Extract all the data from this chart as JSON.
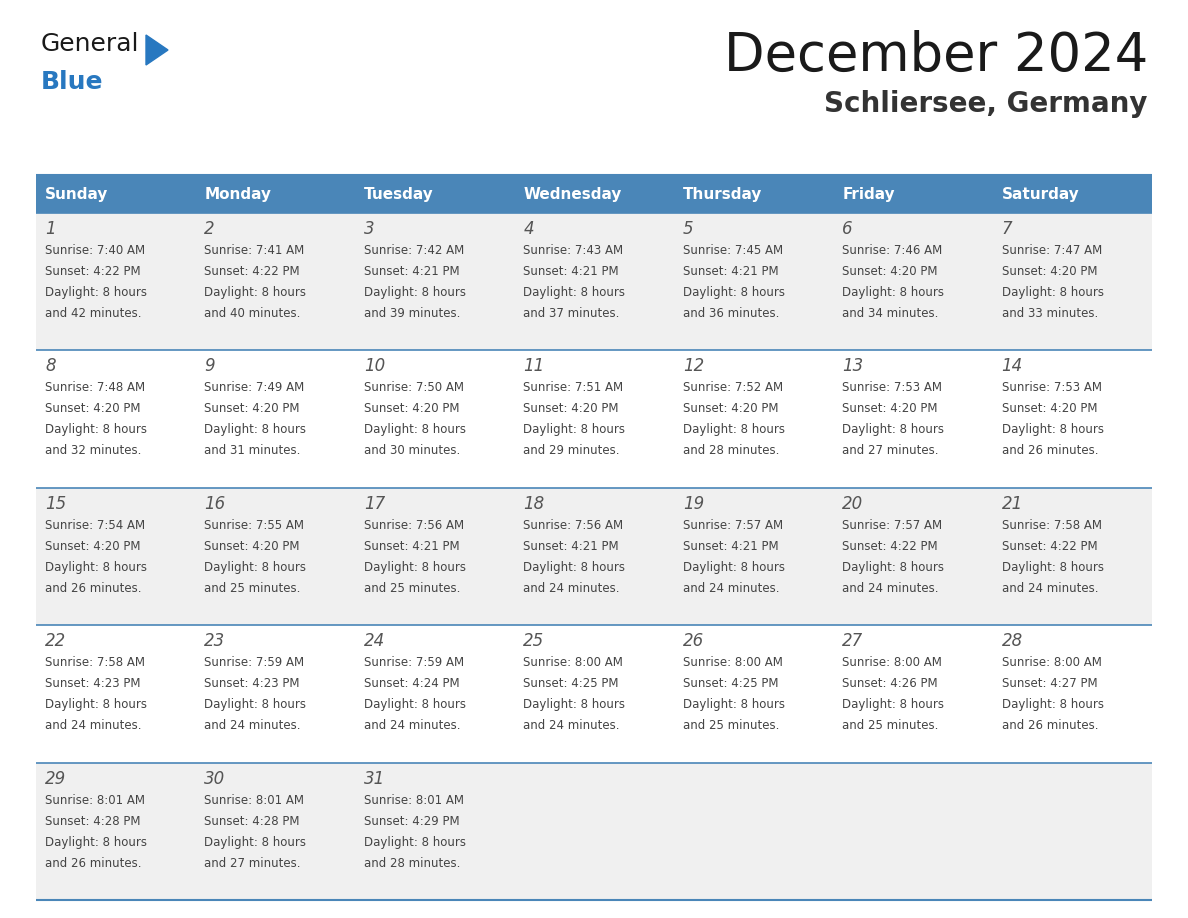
{
  "title": "December 2024",
  "subtitle": "Schliersee, Germany",
  "days_of_week": [
    "Sunday",
    "Monday",
    "Tuesday",
    "Wednesday",
    "Thursday",
    "Friday",
    "Saturday"
  ],
  "header_bg": "#4a86b8",
  "header_text_color": "#ffffff",
  "row_bg_odd": "#f0f0f0",
  "row_bg_even": "#ffffff",
  "cell_text_color": "#444444",
  "day_num_color": "#555555",
  "divider_color": "#4a86b8",
  "calendar_data": [
    [
      {
        "day": 1,
        "sunrise": "7:40 AM",
        "sunset": "4:22 PM",
        "daylight": "8 hours and 42 minutes."
      },
      {
        "day": 2,
        "sunrise": "7:41 AM",
        "sunset": "4:22 PM",
        "daylight": "8 hours and 40 minutes."
      },
      {
        "day": 3,
        "sunrise": "7:42 AM",
        "sunset": "4:21 PM",
        "daylight": "8 hours and 39 minutes."
      },
      {
        "day": 4,
        "sunrise": "7:43 AM",
        "sunset": "4:21 PM",
        "daylight": "8 hours and 37 minutes."
      },
      {
        "day": 5,
        "sunrise": "7:45 AM",
        "sunset": "4:21 PM",
        "daylight": "8 hours and 36 minutes."
      },
      {
        "day": 6,
        "sunrise": "7:46 AM",
        "sunset": "4:20 PM",
        "daylight": "8 hours and 34 minutes."
      },
      {
        "day": 7,
        "sunrise": "7:47 AM",
        "sunset": "4:20 PM",
        "daylight": "8 hours and 33 minutes."
      }
    ],
    [
      {
        "day": 8,
        "sunrise": "7:48 AM",
        "sunset": "4:20 PM",
        "daylight": "8 hours and 32 minutes."
      },
      {
        "day": 9,
        "sunrise": "7:49 AM",
        "sunset": "4:20 PM",
        "daylight": "8 hours and 31 minutes."
      },
      {
        "day": 10,
        "sunrise": "7:50 AM",
        "sunset": "4:20 PM",
        "daylight": "8 hours and 30 minutes."
      },
      {
        "day": 11,
        "sunrise": "7:51 AM",
        "sunset": "4:20 PM",
        "daylight": "8 hours and 29 minutes."
      },
      {
        "day": 12,
        "sunrise": "7:52 AM",
        "sunset": "4:20 PM",
        "daylight": "8 hours and 28 minutes."
      },
      {
        "day": 13,
        "sunrise": "7:53 AM",
        "sunset": "4:20 PM",
        "daylight": "8 hours and 27 minutes."
      },
      {
        "day": 14,
        "sunrise": "7:53 AM",
        "sunset": "4:20 PM",
        "daylight": "8 hours and 26 minutes."
      }
    ],
    [
      {
        "day": 15,
        "sunrise": "7:54 AM",
        "sunset": "4:20 PM",
        "daylight": "8 hours and 26 minutes."
      },
      {
        "day": 16,
        "sunrise": "7:55 AM",
        "sunset": "4:20 PM",
        "daylight": "8 hours and 25 minutes."
      },
      {
        "day": 17,
        "sunrise": "7:56 AM",
        "sunset": "4:21 PM",
        "daylight": "8 hours and 25 minutes."
      },
      {
        "day": 18,
        "sunrise": "7:56 AM",
        "sunset": "4:21 PM",
        "daylight": "8 hours and 24 minutes."
      },
      {
        "day": 19,
        "sunrise": "7:57 AM",
        "sunset": "4:21 PM",
        "daylight": "8 hours and 24 minutes."
      },
      {
        "day": 20,
        "sunrise": "7:57 AM",
        "sunset": "4:22 PM",
        "daylight": "8 hours and 24 minutes."
      },
      {
        "day": 21,
        "sunrise": "7:58 AM",
        "sunset": "4:22 PM",
        "daylight": "8 hours and 24 minutes."
      }
    ],
    [
      {
        "day": 22,
        "sunrise": "7:58 AM",
        "sunset": "4:23 PM",
        "daylight": "8 hours and 24 minutes."
      },
      {
        "day": 23,
        "sunrise": "7:59 AM",
        "sunset": "4:23 PM",
        "daylight": "8 hours and 24 minutes."
      },
      {
        "day": 24,
        "sunrise": "7:59 AM",
        "sunset": "4:24 PM",
        "daylight": "8 hours and 24 minutes."
      },
      {
        "day": 25,
        "sunrise": "8:00 AM",
        "sunset": "4:25 PM",
        "daylight": "8 hours and 24 minutes."
      },
      {
        "day": 26,
        "sunrise": "8:00 AM",
        "sunset": "4:25 PM",
        "daylight": "8 hours and 25 minutes."
      },
      {
        "day": 27,
        "sunrise": "8:00 AM",
        "sunset": "4:26 PM",
        "daylight": "8 hours and 25 minutes."
      },
      {
        "day": 28,
        "sunrise": "8:00 AM",
        "sunset": "4:27 PM",
        "daylight": "8 hours and 26 minutes."
      }
    ],
    [
      {
        "day": 29,
        "sunrise": "8:01 AM",
        "sunset": "4:28 PM",
        "daylight": "8 hours and 26 minutes."
      },
      {
        "day": 30,
        "sunrise": "8:01 AM",
        "sunset": "4:28 PM",
        "daylight": "8 hours and 27 minutes."
      },
      {
        "day": 31,
        "sunrise": "8:01 AM",
        "sunset": "4:29 PM",
        "daylight": "8 hours and 28 minutes."
      },
      null,
      null,
      null,
      null
    ]
  ],
  "logo_text_general": "General",
  "logo_text_blue": "Blue",
  "logo_color_general": "#1a1a1a",
  "logo_color_blue": "#2878c0",
  "logo_triangle_color": "#2878c0"
}
